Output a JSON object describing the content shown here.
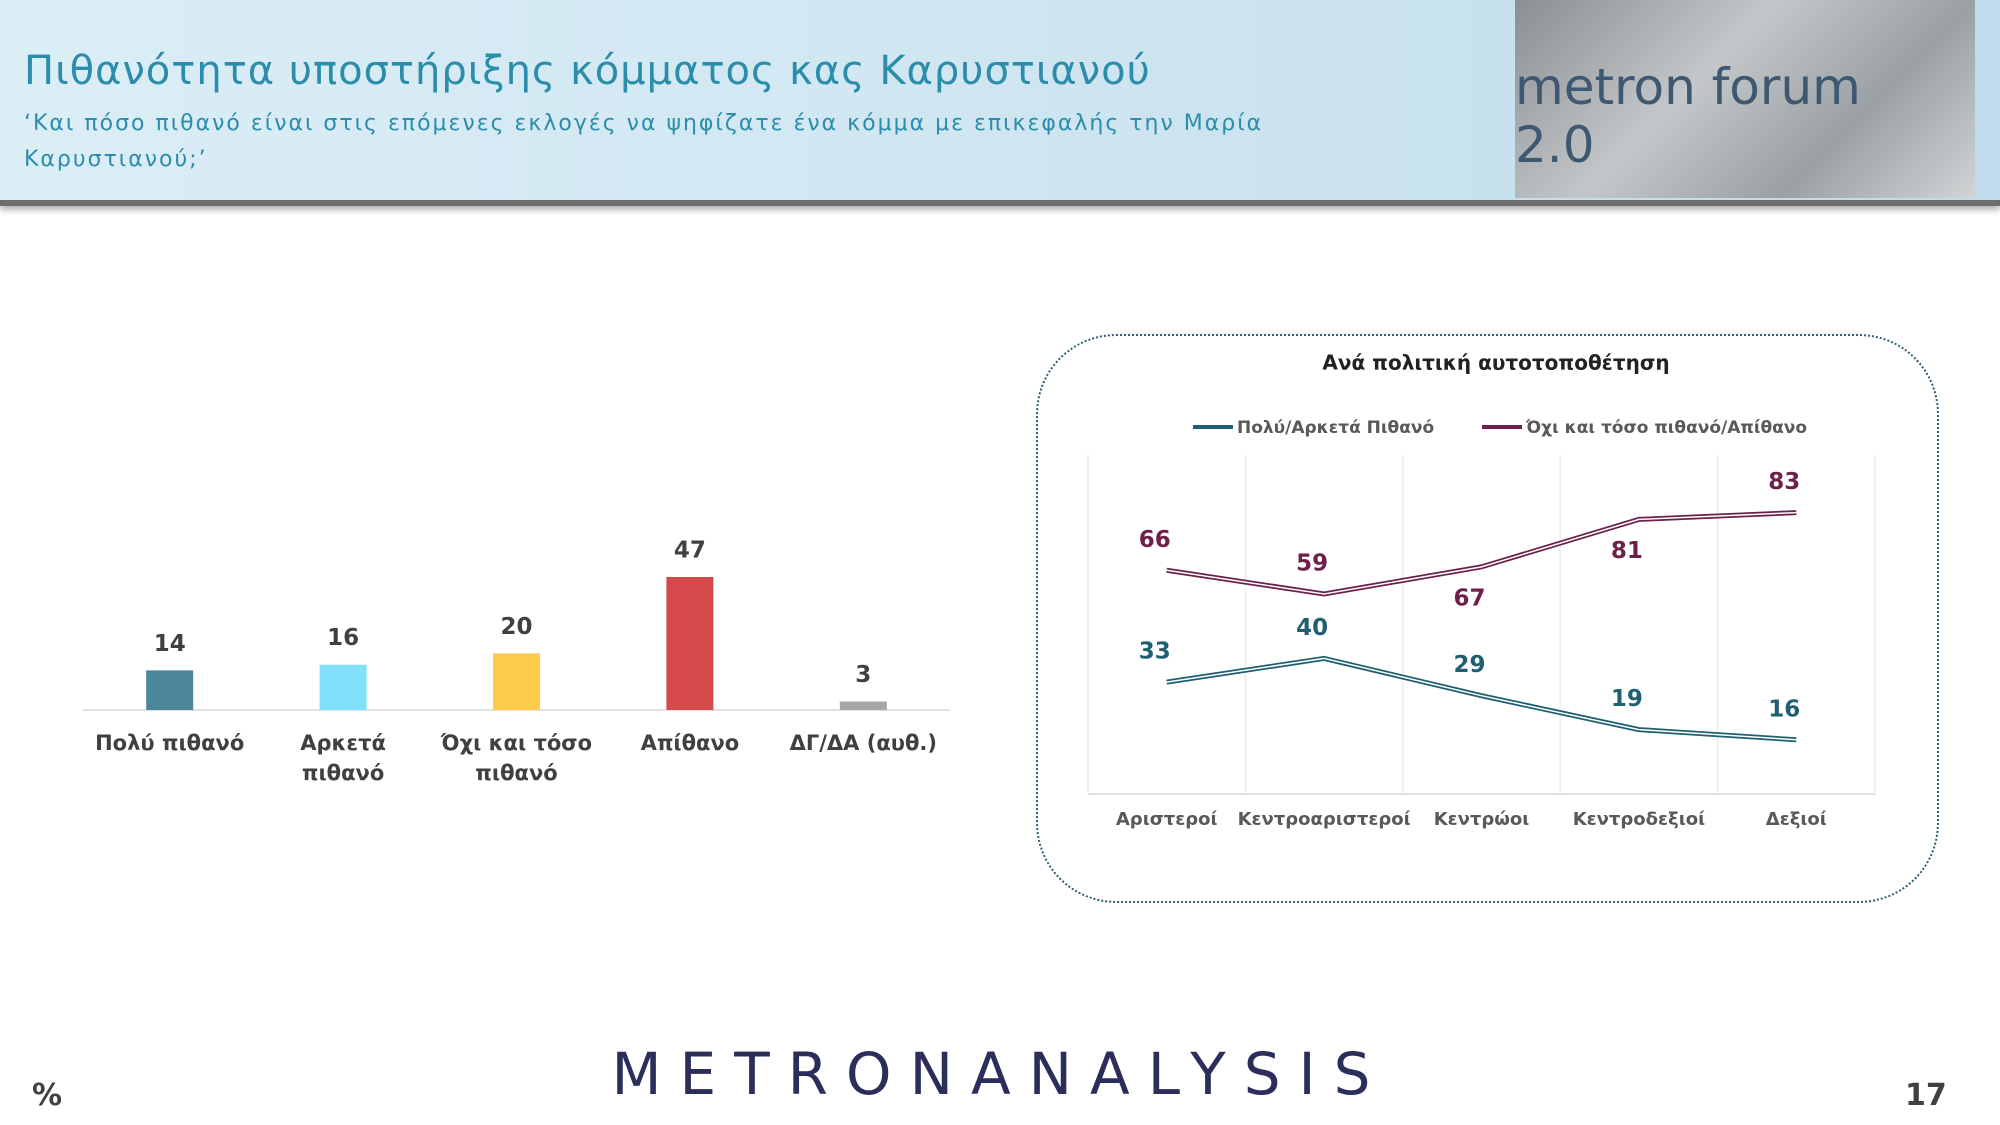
{
  "header": {
    "title": "Πιθανότητα υποστήριξης κόμματος κας Καρυστιανού",
    "subtitle": "‘Και πόσο πιθανό είναι στις επόμενες εκλογές να ψηφίζατε ένα κόμμα με επικεφαλής την Μαρία Καρυστιανού;’",
    "logo": "metron forum 2.0"
  },
  "chart_data": [
    {
      "type": "bar",
      "categories": [
        "Πολύ πιθανό",
        "Αρκετά πιθανό",
        "Όχι και τόσο πιθανό",
        "Απίθανο",
        "ΔΓ/ΔΑ (αυθ.)"
      ],
      "values": [
        14,
        16,
        20,
        47,
        3
      ],
      "colors": [
        "#4b8799",
        "#80e0fb",
        "#fdca4c",
        "#d44a4c",
        "#a6a6a6"
      ],
      "ylim": [
        0,
        50
      ]
    },
    {
      "type": "line",
      "title": "Ανά πολιτική αυτοτοποθέτηση",
      "categories": [
        "Αριστεροί",
        "Κεντροαριστεροί",
        "Κεντρώοι",
        "Κεντροδεξιοί",
        "Δεξιοί"
      ],
      "series": [
        {
          "name": "Πολύ/Αρκετά Πιθανό",
          "color": "#1e5f70",
          "values": [
            33,
            40,
            29,
            19,
            16
          ]
        },
        {
          "name": "Όχι και τόσο πιθανό/Απίθανο",
          "color": "#6e1f4a",
          "values": [
            66,
            59,
            67,
            81,
            83
          ]
        }
      ],
      "ylim": [
        0,
        100
      ],
      "grid": true
    }
  ],
  "footer": {
    "brand": "METRONANALYSIS",
    "unit": "%",
    "page": "17"
  }
}
